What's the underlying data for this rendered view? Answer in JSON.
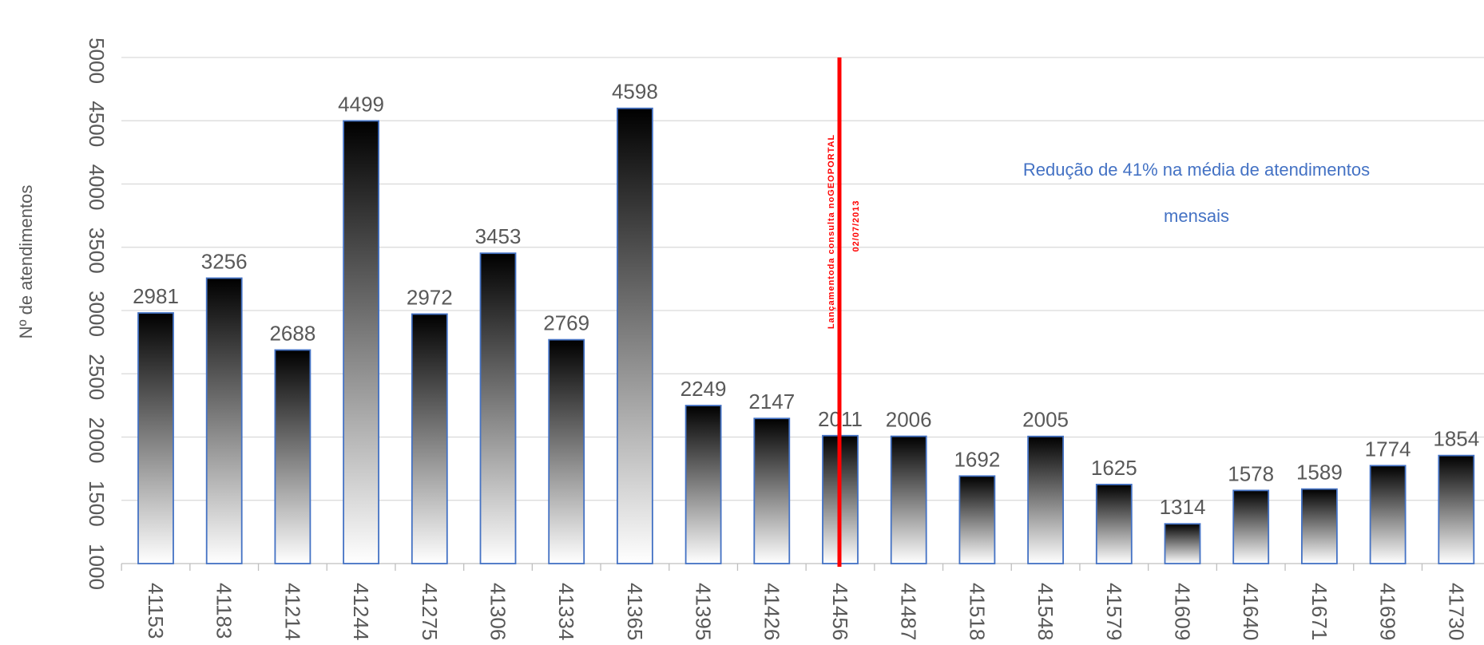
{
  "chart_data": {
    "type": "bar",
    "title": "",
    "xlabel": "",
    "ylabel": "Nº de atendimentos",
    "ylim": [
      1000,
      5000
    ],
    "yticks": [
      1000,
      1500,
      2000,
      2500,
      3000,
      3500,
      4000,
      4500,
      5000
    ],
    "grid": true,
    "legend": "none",
    "categories": [
      "41153",
      "41183",
      "41214",
      "41244",
      "41275",
      "41306",
      "41334",
      "41365",
      "41395",
      "41426",
      "41456",
      "41487",
      "41518",
      "41548",
      "41579",
      "41609",
      "41640",
      "41671",
      "41699",
      "41730"
    ],
    "values": [
      2981,
      3256,
      2688,
      4499,
      2972,
      3453,
      2769,
      4598,
      2249,
      2147,
      2011,
      2006,
      1692,
      2005,
      1625,
      1314,
      1578,
      1589,
      1774,
      1854
    ],
    "bar_gradient": [
      "#000000",
      "#ffffff"
    ],
    "bar_border_color": "#4472c4",
    "marker": {
      "category": "41456",
      "color": "#ff0000",
      "line1": "Lançamentoda consulta noGEOPORTAL",
      "line2": "02/07/2013"
    },
    "annotation": {
      "line1": "Redução de 41% na média de atendimentos",
      "line2": "mensais",
      "color": "#4472c4"
    }
  }
}
